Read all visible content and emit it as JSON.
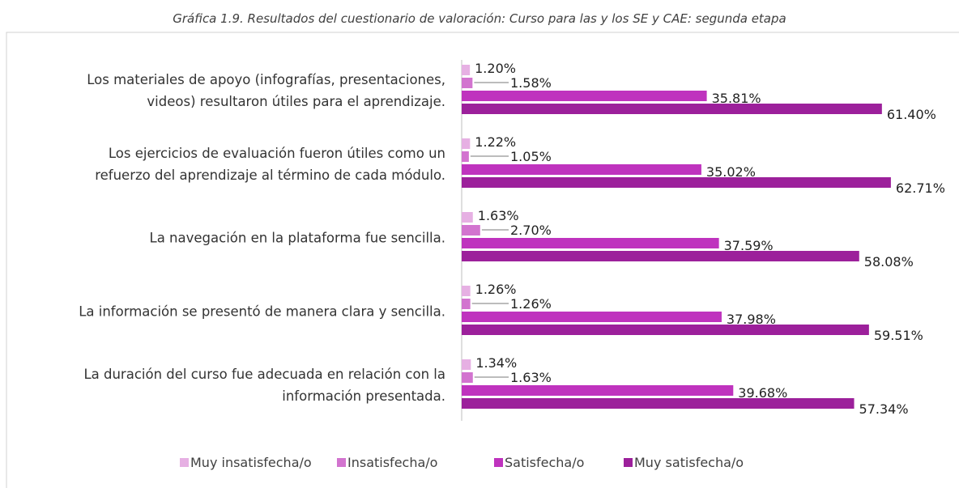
{
  "chart_data": {
    "type": "bar",
    "orientation": "horizontal",
    "title": "Gráfica 1.9. Resultados del cuestionario de valoración: Curso para las y los SE y CAE: segunda etapa",
    "categories": [
      "Los materiales de apoyo (infografías, presentaciones,\nvideos) resultaron útiles para el aprendizaje.",
      "Los ejercicios de evaluación fueron útiles como un\nrefuerzo del aprendizaje al término de cada módulo.",
      "La navegación en la plataforma fue sencilla.",
      "La información se presentó de manera clara y sencilla.",
      "La duración del curso fue adecuada en relación con la\ninformación presentada."
    ],
    "series": [
      {
        "name": "Muy insatisfecha/o",
        "color": "#e6b0e3",
        "values": [
          1.2,
          1.22,
          1.63,
          1.26,
          1.34
        ],
        "value_labels": [
          "1.20%",
          "1.22%",
          "1.63%",
          "1.26%",
          "1.34%"
        ]
      },
      {
        "name": "Insatisfecha/o",
        "color": "#d274cf",
        "values": [
          1.58,
          1.05,
          2.7,
          1.26,
          1.63
        ],
        "value_labels": [
          "1.58%",
          "1.05%",
          "2.70%",
          "1.26%",
          "1.63%"
        ]
      },
      {
        "name": "Satisfecha/o",
        "color": "#bf33be",
        "values": [
          35.81,
          35.02,
          37.59,
          37.98,
          39.68
        ],
        "value_labels": [
          "35.81%",
          "35.02%",
          "37.59%",
          "37.98%",
          "39.68%"
        ]
      },
      {
        "name": "Muy satisfecha/o",
        "color": "#9c209b",
        "values": [
          61.4,
          62.71,
          58.08,
          59.51,
          57.34
        ],
        "value_labels": [
          "61.40%",
          "62.71%",
          "58.08%",
          "59.51%",
          "57.34%"
        ]
      }
    ],
    "legend": "bottom"
  }
}
